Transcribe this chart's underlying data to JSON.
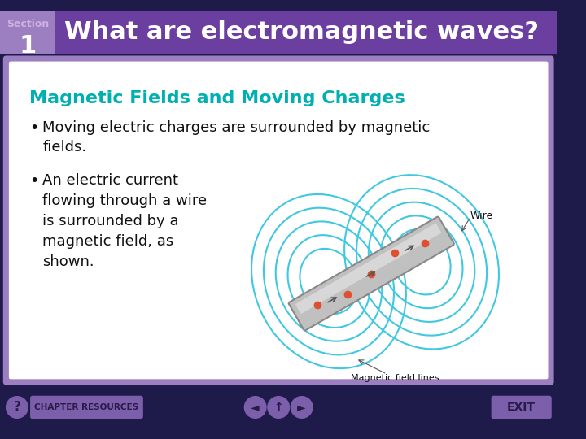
{
  "title_section_label": "Section",
  "title_section_number": "1",
  "title_main": "What are electromagnetic waves?",
  "header_bg_color": "#6b3fa0",
  "header_left_color": "#9b7fc0",
  "slide_bg_color": "#1e1a4a",
  "content_bg_color": "#ffffff",
  "subtitle_color": "#00b0b0",
  "subtitle_text": "Magnetic Fields and Moving Charges",
  "bullet1": "Moving electric charges are surrounded by magnetic\nfields.",
  "bullet2": "An electric current\nflowing through a wire\nis surrounded by a\nmagnetic field, as\nshown.",
  "bullet_color": "#111111",
  "content_border_color": "#9b7fc0",
  "footer_bg_color": "#1e1a4a",
  "footer_button_color": "#7b5faa",
  "footer_text_color": "#7b5faa",
  "footer_buttons": [
    "?",
    "CHAPTER RESOURCES",
    "◄",
    "↑",
    "►",
    "EXIT"
  ],
  "title_text_color": "#ffffff",
  "section_label_color": "#d0b0e0"
}
